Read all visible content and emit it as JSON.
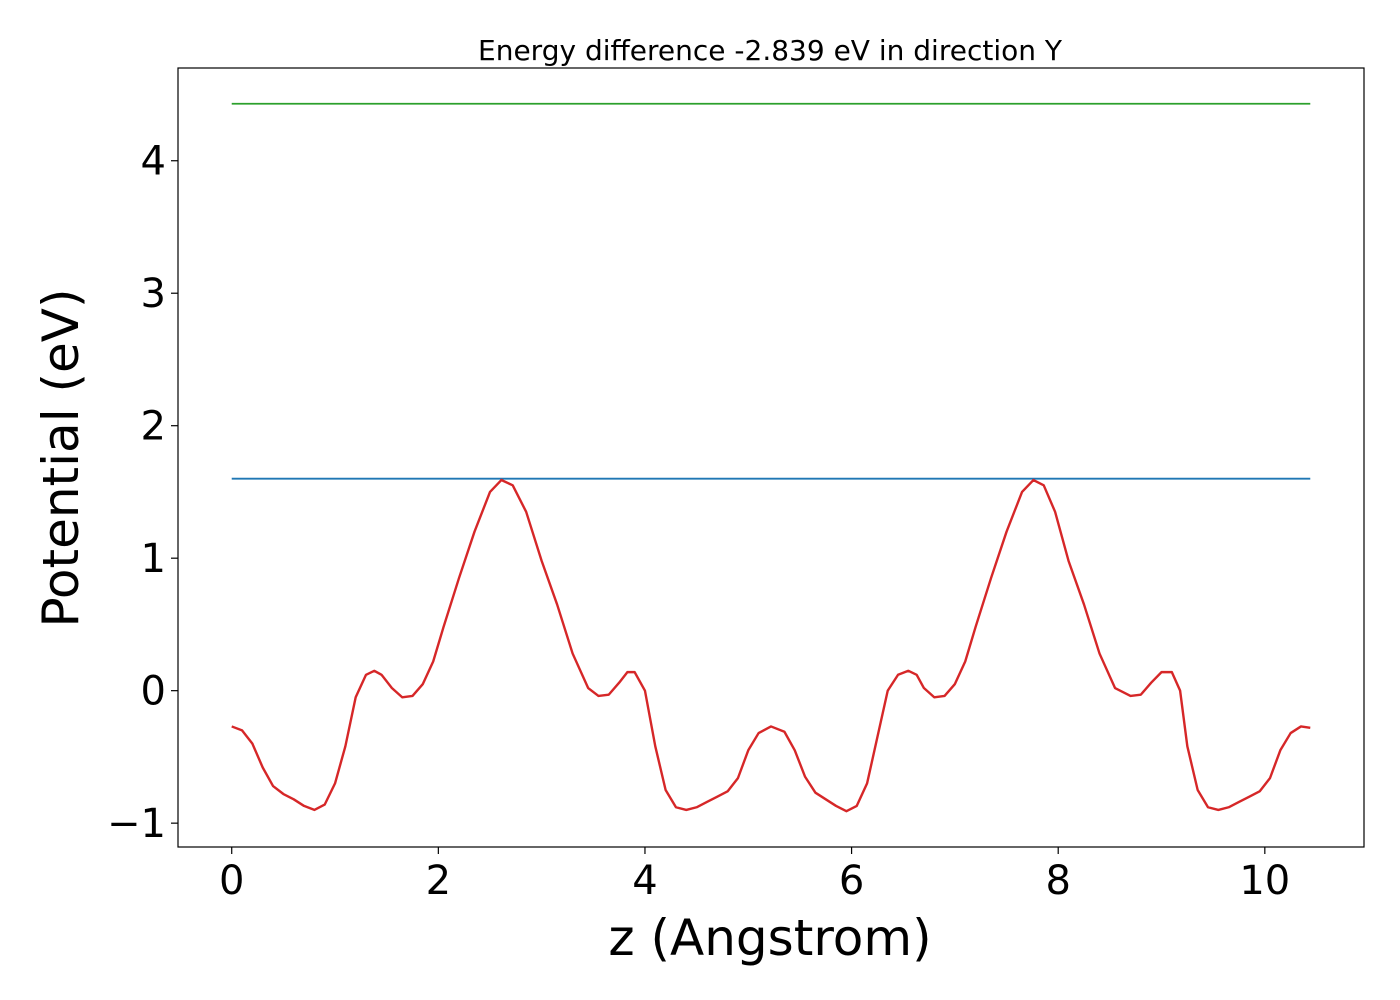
{
  "chart_data": {
    "type": "line",
    "title": "Energy difference -2.839 eV in direction Y",
    "xlabel": "z (Angstrom)",
    "ylabel": "Potential (eV)",
    "xlim": [
      -0.52,
      10.96
    ],
    "ylim": [
      -1.18,
      4.7
    ],
    "x_ticks": [
      0,
      2,
      4,
      6,
      8,
      10
    ],
    "y_ticks": [
      -1,
      0,
      1,
      2,
      3,
      4
    ],
    "x_tick_labels": [
      "0",
      "2",
      "4",
      "6",
      "8",
      "10"
    ],
    "y_tick_labels": [
      "−1",
      "0",
      "1",
      "2",
      "3",
      "4"
    ],
    "grid": false,
    "series": [
      {
        "color": "#2ca02c",
        "x": [
          0,
          10.44
        ],
        "y": [
          4.43,
          4.43
        ]
      },
      {
        "color": "#1f77b4",
        "x": [
          0,
          10.44
        ],
        "y": [
          1.6,
          1.6
        ]
      },
      {
        "color": "#d62728",
        "x": [
          0.0,
          0.1,
          0.2,
          0.3,
          0.4,
          0.5,
          0.6,
          0.7,
          0.8,
          0.9,
          1.0,
          1.1,
          1.2,
          1.3,
          1.38,
          1.45,
          1.55,
          1.65,
          1.75,
          1.85,
          1.95,
          2.05,
          2.2,
          2.35,
          2.5,
          2.61,
          2.72,
          2.85,
          3.0,
          3.15,
          3.3,
          3.45,
          3.55,
          3.65,
          3.75,
          3.83,
          3.9,
          4.0,
          4.1,
          4.2,
          4.3,
          4.4,
          4.5,
          4.6,
          4.7,
          4.8,
          4.9,
          5.0,
          5.1,
          5.22,
          5.35,
          5.45,
          5.55,
          5.65,
          5.75,
          5.85,
          5.95,
          6.05,
          6.15,
          6.25,
          6.35,
          6.45,
          6.55,
          6.63,
          6.7,
          6.8,
          6.9,
          7.0,
          7.1,
          7.2,
          7.35,
          7.5,
          7.65,
          7.76,
          7.86,
          7.97,
          8.1,
          8.25,
          8.4,
          8.55,
          8.7,
          8.8,
          8.9,
          9.0,
          9.1,
          9.18,
          9.25,
          9.35,
          9.45,
          9.55,
          9.65,
          9.75,
          9.85,
          9.95,
          10.05,
          10.15,
          10.25,
          10.35,
          10.44
        ],
        "y": [
          -0.27,
          -0.3,
          -0.4,
          -0.58,
          -0.72,
          -0.78,
          -0.82,
          -0.87,
          -0.9,
          -0.86,
          -0.7,
          -0.42,
          -0.05,
          0.12,
          0.15,
          0.12,
          0.02,
          -0.05,
          -0.04,
          0.05,
          0.22,
          0.48,
          0.85,
          1.2,
          1.5,
          1.59,
          1.55,
          1.35,
          0.98,
          0.65,
          0.28,
          0.02,
          -0.04,
          -0.03,
          0.06,
          0.14,
          0.14,
          0.0,
          -0.42,
          -0.75,
          -0.88,
          -0.9,
          -0.88,
          -0.84,
          -0.8,
          -0.76,
          -0.66,
          -0.45,
          -0.32,
          -0.27,
          -0.31,
          -0.45,
          -0.65,
          -0.77,
          -0.82,
          -0.87,
          -0.91,
          -0.87,
          -0.7,
          -0.35,
          0.0,
          0.12,
          0.15,
          0.12,
          0.02,
          -0.05,
          -0.04,
          0.05,
          0.22,
          0.48,
          0.85,
          1.2,
          1.5,
          1.59,
          1.55,
          1.35,
          0.98,
          0.65,
          0.28,
          0.02,
          -0.04,
          -0.03,
          0.06,
          0.14,
          0.14,
          0.0,
          -0.42,
          -0.75,
          -0.88,
          -0.9,
          -0.88,
          -0.84,
          -0.8,
          -0.76,
          -0.66,
          -0.45,
          -0.32,
          -0.27,
          -0.28
        ]
      }
    ]
  }
}
